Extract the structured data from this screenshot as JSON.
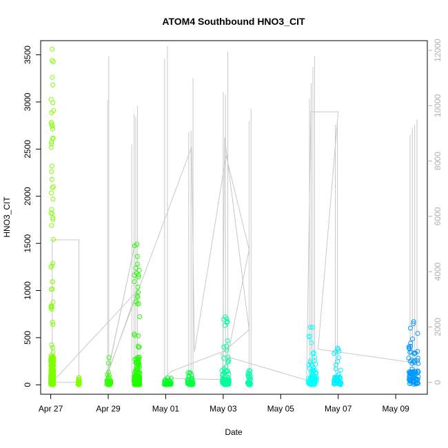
{
  "chart_data": {
    "type": "scatter",
    "title": "ATOM4 Southbound HNO3_CIT",
    "xlabel": "Date",
    "ylabel": "HNO3_CIT",
    "x_tick_labels": [
      "Apr 27",
      "Apr 29",
      "May 01",
      "May 03",
      "May 05",
      "May 07",
      "May 09"
    ],
    "x_tick_days": [
      0,
      2,
      4,
      6,
      8,
      10,
      12
    ],
    "xlim_days": [
      -0.35,
      13.1
    ],
    "ylim": [
      -100,
      3650
    ],
    "y_ticks": [
      0,
      500,
      1000,
      1500,
      2000,
      2500,
      3000,
      3500
    ],
    "y2lim": [
      -430,
      12350
    ],
    "y2_ticks": [
      0,
      2000,
      4000,
      6000,
      8000,
      10000,
      12000
    ],
    "y2_color": "#b0b0b0",
    "grid": false,
    "series": [
      {
        "day_start": 0.0,
        "day_end": 0.1,
        "color": "#7fff00",
        "y_max": 3560,
        "y_typical": 300
      },
      {
        "day_start": 0.95,
        "day_end": 1.0,
        "color": "#7fff00",
        "y_max": 75,
        "y_typical": 40
      },
      {
        "day_start": 1.95,
        "day_end": 2.1,
        "color": "#33ff00",
        "y_max": 290,
        "y_typical": 120
      },
      {
        "day_start": 2.9,
        "day_end": 3.1,
        "color": "#22ff00",
        "y_max": 1490,
        "y_typical": 280
      },
      {
        "day_start": 3.95,
        "day_end": 4.2,
        "color": "#00ff22",
        "y_max": 75,
        "y_typical": 45
      },
      {
        "day_start": 4.75,
        "day_end": 4.95,
        "color": "#00ff44",
        "y_max": 130,
        "y_typical": 60
      },
      {
        "day_start": 5.95,
        "day_end": 6.2,
        "color": "#00ff99",
        "y_max": 720,
        "y_typical": 160
      },
      {
        "day_start": 6.85,
        "day_end": 6.95,
        "color": "#00ffaa",
        "y_max": 150,
        "y_typical": 80
      },
      {
        "day_start": 8.95,
        "day_end": 9.25,
        "color": "#00ffff",
        "y_max": 610,
        "y_typical": 260
      },
      {
        "day_start": 9.85,
        "day_end": 10.1,
        "color": "#00f0ff",
        "y_max": 390,
        "y_typical": 240
      },
      {
        "day_start": 12.45,
        "day_end": 12.8,
        "color": "#0099ff",
        "y_max": 670,
        "y_typical": 420
      }
    ],
    "secondary_spikes": [
      {
        "day": 1.98,
        "y2": 10200
      },
      {
        "day": 2.02,
        "y2": 11800
      },
      {
        "day": 2.82,
        "y2": 8600
      },
      {
        "day": 2.9,
        "y2": 9700
      },
      {
        "day": 2.96,
        "y2": 9600
      },
      {
        "day": 3.02,
        "y2": 10000
      },
      {
        "day": 3.96,
        "y2": 11700
      },
      {
        "day": 4.06,
        "y2": 12150
      },
      {
        "day": 4.8,
        "y2": 9050
      },
      {
        "day": 4.88,
        "y2": 9100
      },
      {
        "day": 4.95,
        "y2": 11000
      },
      {
        "day": 6.0,
        "y2": 10500
      },
      {
        "day": 6.08,
        "y2": 10400
      },
      {
        "day": 6.16,
        "y2": 11950
      },
      {
        "day": 6.9,
        "y2": 9450
      },
      {
        "day": 6.97,
        "y2": 9900
      },
      {
        "day": 9.0,
        "y2": 10250
      },
      {
        "day": 9.06,
        "y2": 10800
      },
      {
        "day": 9.12,
        "y2": 11400
      },
      {
        "day": 9.18,
        "y2": 11800
      },
      {
        "day": 9.9,
        "y2": 9300
      },
      {
        "day": 9.97,
        "y2": 9450
      },
      {
        "day": 12.5,
        "y2": 8950
      },
      {
        "day": 12.58,
        "y2": 9200
      },
      {
        "day": 12.66,
        "y2": 9300
      },
      {
        "day": 12.74,
        "y2": 9500
      }
    ],
    "secondary_path": [
      [
        0.05,
        0
      ],
      [
        0.05,
        5150
      ],
      [
        0.98,
        5150
      ],
      [
        0.98,
        0
      ],
      [
        0.05,
        0
      ],
      [
        3.0,
        3300
      ],
      [
        1.95,
        200
      ],
      [
        2.95,
        5100
      ],
      [
        2.0,
        400
      ],
      [
        4.9,
        8500
      ],
      [
        5.0,
        1100
      ],
      [
        6.1,
        8200
      ],
      [
        6.9,
        4800
      ],
      [
        6.2,
        1200
      ],
      [
        4.2,
        400
      ],
      [
        3.95,
        150
      ],
      [
        5.98,
        100
      ],
      [
        6.05,
        8850
      ],
      [
        6.9,
        1900
      ],
      [
        5.9,
        1000
      ],
      [
        8.9,
        80
      ],
      [
        9.05,
        9780
      ],
      [
        10.0,
        9780
      ],
      [
        9.3,
        1200
      ],
      [
        12.7,
        700
      ]
    ]
  }
}
